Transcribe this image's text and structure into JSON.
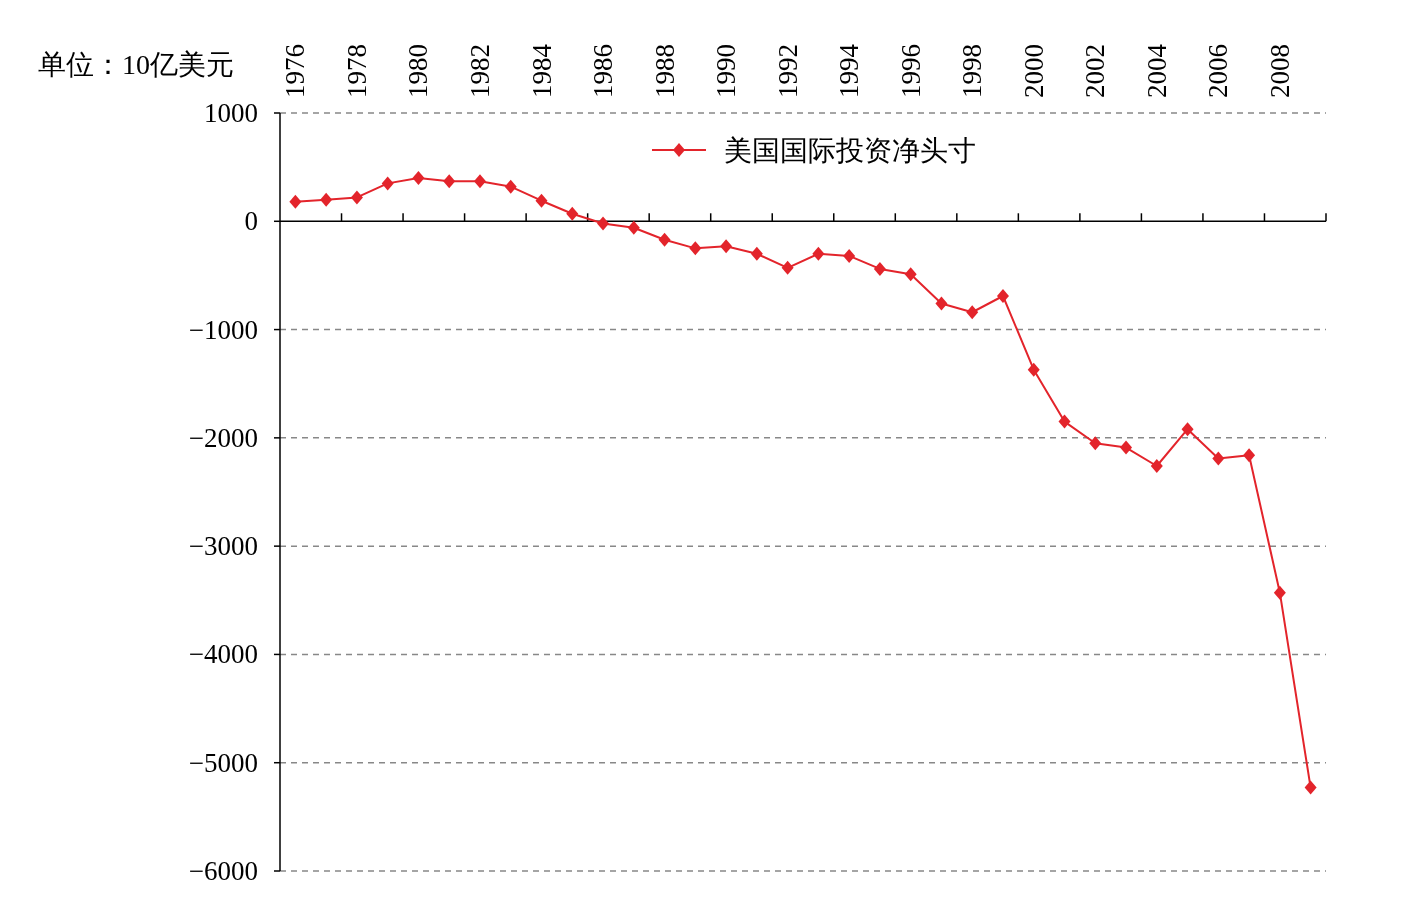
{
  "chart_data": {
    "type": "line",
    "ylabel": "单位：10亿美元",
    "categories": [
      "1976",
      null,
      "1978",
      null,
      "1980",
      null,
      "1982",
      null,
      "1984",
      null,
      "1986",
      null,
      "1988",
      null,
      "1990",
      null,
      "1992",
      null,
      "1994",
      null,
      "1996",
      null,
      "1998",
      null,
      "2000",
      null,
      "2002",
      null,
      "2004",
      null,
      "2006",
      null,
      "2008",
      null
    ],
    "series": [
      {
        "name": "美国国际投资净头寸",
        "color": "#e3242b",
        "values": [
          180,
          200,
          220,
          350,
          400,
          370,
          370,
          320,
          190,
          70,
          -20,
          -60,
          -170,
          -250,
          -230,
          -300,
          -430,
          -300,
          -320,
          -440,
          -490,
          -760,
          -840,
          -690,
          -1370,
          -1850,
          -2050,
          -2090,
          -2260,
          -1920,
          -2190,
          -2160,
          -3430,
          -5230
        ]
      }
    ],
    "ylim": [
      -6000,
      1000
    ],
    "yticks": [
      -6000,
      -5000,
      -4000,
      -3000,
      -2000,
      -1000,
      0,
      1000
    ],
    "grid": "y",
    "legend": "top",
    "marker": "diamond"
  }
}
